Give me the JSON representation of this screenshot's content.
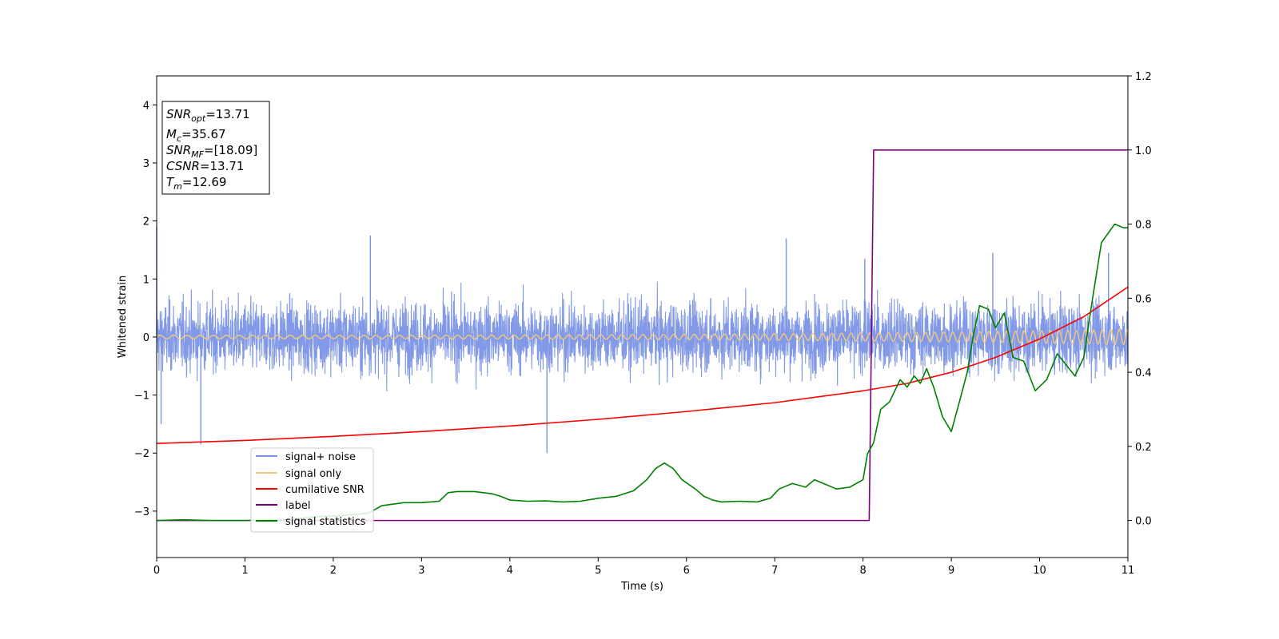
{
  "chart_data": {
    "type": "line",
    "title": "",
    "xlabel": "Time (s)",
    "ylabel": "Whitened strain",
    "xlim": [
      0,
      11
    ],
    "ylim_left": [
      -3.8,
      4.5
    ],
    "ylim_right": [
      -0.1,
      1.2
    ],
    "xticks": [
      "0",
      "1",
      "2",
      "3",
      "4",
      "5",
      "6",
      "7",
      "8",
      "9",
      "10",
      "11"
    ],
    "yticks_left": [
      "−3",
      "−2",
      "−1",
      "0",
      "1",
      "2",
      "3",
      "4"
    ],
    "yticks_right": [
      "0.0",
      "0.2",
      "0.4",
      "0.6",
      "0.8",
      "1.0",
      "1.2"
    ],
    "grid": false,
    "legend_placement": "lower-left",
    "info_box": {
      "snr_opt": "=13.71",
      "mc": "=35.67",
      "snr_mf": "=[18.09]",
      "csnr": "=13.71",
      "tm": "=12.69"
    },
    "series": [
      {
        "name": "signal+ noise",
        "axis": "left",
        "color": "#7b93e6",
        "style": "noise band, approx. amplitude ±0.8 with peaks to ±1.8",
        "peaks": [
          [
            0.0,
            1.9
          ],
          [
            0.5,
            -1.85
          ],
          [
            2.42,
            1.75
          ],
          [
            4.42,
            -2.0
          ],
          [
            7.13,
            1.7
          ],
          [
            8.02,
            1.35
          ],
          [
            9.47,
            1.45
          ],
          [
            10.78,
            1.45
          ],
          [
            0.05,
            -1.5
          ]
        ]
      },
      {
        "name": "signal only",
        "axis": "left",
        "color": "#f5c87a",
        "style": "chirp, amplitude 0.03 at t=0 rising to 0.13 at t=11"
      },
      {
        "name": "cumilative SNR",
        "axis": "right",
        "color": "#ff0000",
        "x": [
          0,
          1,
          2,
          3,
          4,
          5,
          6,
          7,
          8,
          8.5,
          9,
          9.5,
          10,
          10.5,
          11
        ],
        "y": [
          0.208,
          0.216,
          0.227,
          0.24,
          0.255,
          0.273,
          0.294,
          0.318,
          0.35,
          0.37,
          0.4,
          0.44,
          0.49,
          0.55,
          0.63
        ]
      },
      {
        "name": "label",
        "axis": "right",
        "color": "#800080",
        "x": [
          0,
          8.07,
          8.12,
          11
        ],
        "y": [
          0.0,
          0.0,
          1.0,
          1.0
        ]
      },
      {
        "name": "signal statistics",
        "axis": "right",
        "color": "#008000",
        "x": [
          0,
          0.3,
          0.6,
          1.0,
          1.5,
          1.8,
          2.1,
          2.4,
          2.55,
          2.8,
          3.0,
          3.1,
          3.2,
          3.3,
          3.4,
          3.6,
          3.8,
          3.9,
          4.0,
          4.2,
          4.4,
          4.6,
          4.8,
          5.0,
          5.2,
          5.4,
          5.55,
          5.65,
          5.75,
          5.85,
          5.95,
          6.1,
          6.2,
          6.3,
          6.4,
          6.6,
          6.8,
          6.95,
          7.05,
          7.2,
          7.35,
          7.45,
          7.55,
          7.7,
          7.85,
          8.0,
          8.05,
          8.12,
          8.2,
          8.3,
          8.42,
          8.5,
          8.58,
          8.65,
          8.72,
          8.8,
          8.9,
          9.0,
          9.08,
          9.18,
          9.25,
          9.32,
          9.42,
          9.5,
          9.6,
          9.7,
          9.82,
          9.95,
          10.08,
          10.2,
          10.3,
          10.4,
          10.5,
          10.6,
          10.7,
          10.85,
          10.95,
          11.0
        ],
        "y": [
          0.0,
          0.002,
          0.0,
          0.0,
          0.003,
          0.01,
          0.013,
          0.02,
          0.04,
          0.048,
          0.048,
          0.05,
          0.052,
          0.075,
          0.078,
          0.078,
          0.072,
          0.065,
          0.055,
          0.052,
          0.053,
          0.05,
          0.052,
          0.06,
          0.065,
          0.08,
          0.11,
          0.14,
          0.155,
          0.14,
          0.11,
          0.085,
          0.065,
          0.055,
          0.05,
          0.052,
          0.05,
          0.06,
          0.085,
          0.1,
          0.09,
          0.11,
          0.1,
          0.085,
          0.09,
          0.11,
          0.18,
          0.21,
          0.3,
          0.32,
          0.38,
          0.36,
          0.39,
          0.37,
          0.41,
          0.36,
          0.28,
          0.24,
          0.31,
          0.4,
          0.5,
          0.58,
          0.57,
          0.52,
          0.56,
          0.44,
          0.43,
          0.35,
          0.38,
          0.45,
          0.42,
          0.39,
          0.44,
          0.6,
          0.75,
          0.8,
          0.79,
          0.79
        ]
      }
    ]
  }
}
